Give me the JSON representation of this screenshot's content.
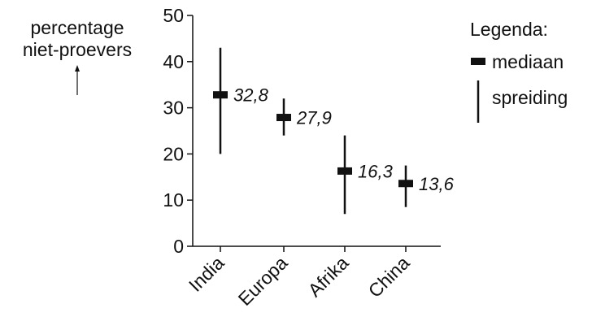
{
  "chart_data": {
    "type": "range",
    "categories": [
      "India",
      "Europa",
      "Afrika",
      "China"
    ],
    "series": [
      {
        "name": "mediaan",
        "values": [
          32.8,
          27.9,
          16.3,
          13.6
        ]
      },
      {
        "name": "spreiding",
        "ranges": [
          [
            20,
            43
          ],
          [
            24,
            32
          ],
          [
            7,
            24
          ],
          [
            8.5,
            17.5
          ]
        ]
      }
    ],
    "data_labels": [
      "32,8",
      "27,9",
      "16,3",
      "13,6"
    ],
    "ylabel_lines": [
      "percentage",
      "niet-proevers"
    ],
    "ylim": [
      0,
      50
    ],
    "yticks": [
      0,
      10,
      20,
      30,
      40,
      50
    ],
    "legend": {
      "title": "Legenda:",
      "median_label": "mediaan",
      "range_label": "spreiding",
      "placement": "right"
    },
    "grid": false
  }
}
